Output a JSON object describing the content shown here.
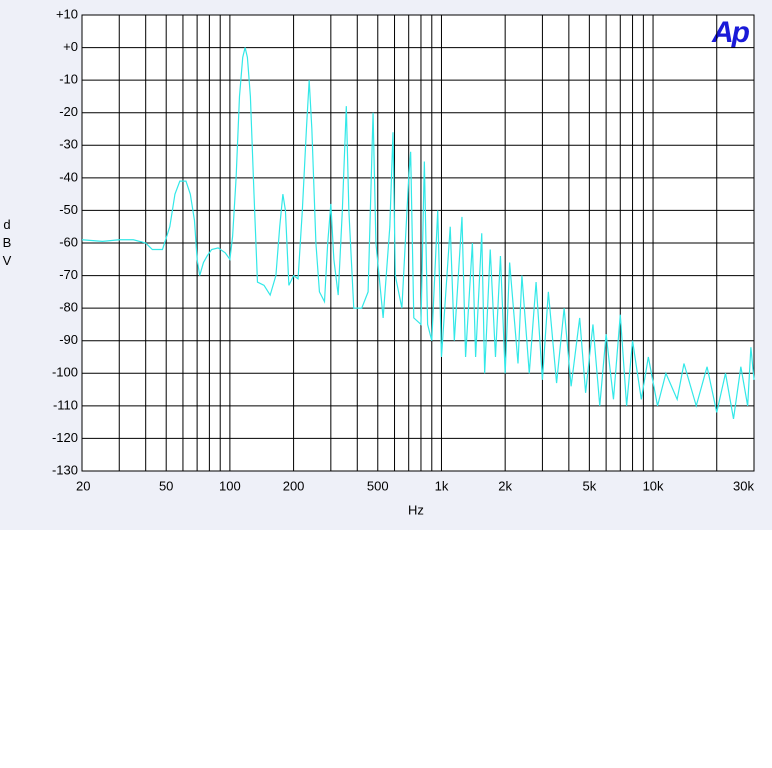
{
  "chart_data": {
    "type": "line",
    "logo": "Ap",
    "xlabel": "Hz",
    "ylabel": "dBV",
    "xlog": true,
    "grid": true,
    "xlim": [
      20,
      30000
    ],
    "ylim": [
      -130,
      10
    ],
    "xticks": [
      20,
      50,
      100,
      200,
      500,
      {
        "value": 1000,
        "label": "1k"
      },
      {
        "value": 2000,
        "label": "2k"
      },
      {
        "value": 5000,
        "label": "5k"
      },
      {
        "value": 10000,
        "label": "10k"
      },
      {
        "value": 30000,
        "label": "30k"
      }
    ],
    "xminor": [
      30,
      40,
      60,
      70,
      80,
      90,
      300,
      400,
      600,
      700,
      800,
      900,
      3000,
      4000,
      6000,
      7000,
      8000,
      9000,
      20000
    ],
    "yticks": [
      {
        "value": 10,
        "label": "+10"
      },
      {
        "value": 0,
        "label": "+0"
      },
      -10,
      -20,
      -30,
      -40,
      -50,
      -60,
      -70,
      -80,
      -90,
      -100,
      -110,
      -120,
      -130
    ],
    "series": [
      {
        "color": "#33e8e8",
        "x": [
          20,
          25,
          30,
          35,
          40,
          43,
          48,
          52,
          55,
          58,
          62,
          65,
          68,
          70,
          72,
          75,
          78,
          82,
          88,
          95,
          100,
          103,
          107,
          111,
          115,
          118,
          121,
          125,
          130,
          135,
          145,
          155,
          165,
          172,
          178,
          183,
          190,
          200,
          210,
          220,
          230,
          237,
          244,
          255,
          265,
          280,
          290,
          300,
          310,
          325,
          340,
          355,
          365,
          385,
          420,
          450,
          475,
          490,
          530,
          570,
          590,
          605,
          650,
          700,
          715,
          740,
          800,
          830,
          860,
          900,
          960,
          1000,
          1100,
          1150,
          1250,
          1300,
          1400,
          1450,
          1550,
          1600,
          1700,
          1800,
          1900,
          2000,
          2100,
          2300,
          2400,
          2600,
          2800,
          3000,
          3200,
          3500,
          3800,
          4100,
          4500,
          4800,
          5200,
          5600,
          6000,
          6500,
          7000,
          7500,
          8000,
          8800,
          9500,
          10500,
          11500,
          13000,
          14000,
          16000,
          18000,
          20000,
          22000,
          24000,
          26000,
          28000,
          29000,
          30000
        ],
        "values": [
          -59,
          -59.5,
          -59,
          -59,
          -60,
          -62,
          -62,
          -55,
          -45,
          -41,
          -41,
          -45,
          -53,
          -65,
          -70,
          -66,
          -64,
          -62,
          -61.5,
          -63,
          -65,
          -58,
          -40,
          -15,
          -3,
          0,
          -3,
          -15,
          -45,
          -72,
          -73,
          -76,
          -70,
          -55,
          -45,
          -50,
          -73,
          -70,
          -71,
          -50,
          -25,
          -10,
          -25,
          -60,
          -75,
          -78,
          -60,
          -48,
          -65,
          -76,
          -50,
          -18,
          -50,
          -80,
          -80,
          -75,
          -20,
          -60,
          -83,
          -55,
          -26,
          -70,
          -80,
          -40,
          -32,
          -83,
          -85,
          -35,
          -85,
          -90,
          -50,
          -95,
          -55,
          -90,
          -52,
          -95,
          -60,
          -95,
          -57,
          -100,
          -62,
          -95,
          -64,
          -100,
          -66,
          -97,
          -70,
          -100,
          -72,
          -102,
          -75,
          -103,
          -80,
          -104,
          -83,
          -106,
          -85,
          -110,
          -88,
          -108,
          -82,
          -110,
          -90,
          -108,
          -95,
          -110,
          -100,
          -108,
          -97,
          -110,
          -98,
          -112,
          -100,
          -114,
          -98,
          -110,
          -92,
          -102
        ]
      }
    ]
  }
}
